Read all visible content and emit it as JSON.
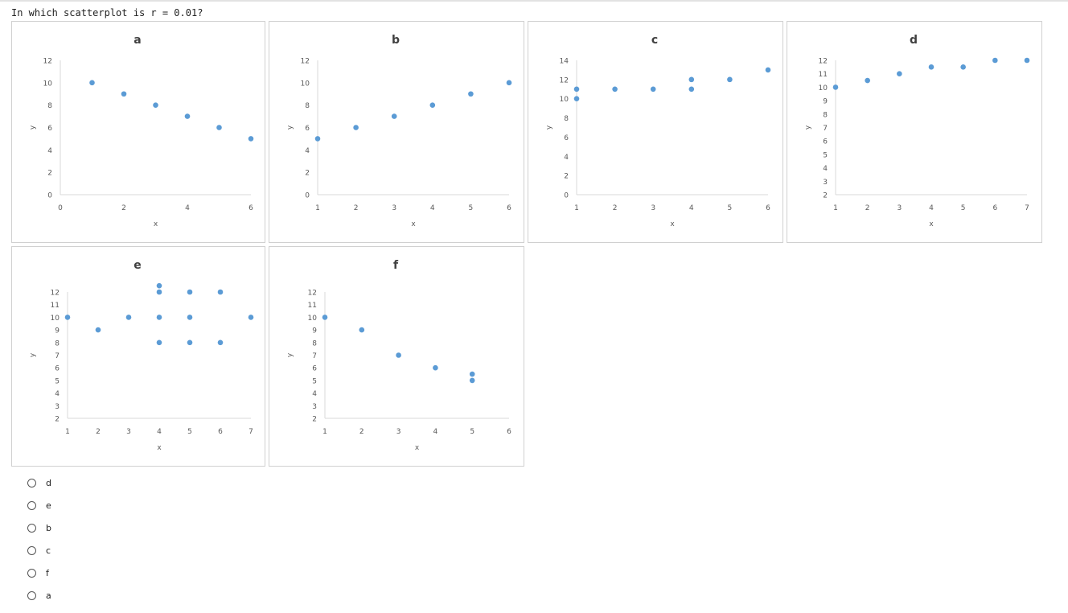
{
  "question": "In which scatterplot is r = 0.01?",
  "colors": {
    "point": "#5b9bd5",
    "axis": "#d9d9d9",
    "text": "#595959"
  },
  "chart_data": [
    {
      "type": "scatter",
      "title": "a",
      "xlabel": "x",
      "ylabel": "y",
      "xlim": [
        0,
        6
      ],
      "ylim": [
        0,
        12
      ],
      "xticks": [
        0,
        2,
        4,
        6
      ],
      "yticks": [
        0,
        2,
        4,
        6,
        8,
        10,
        12
      ],
      "points": [
        [
          1,
          10
        ],
        [
          2,
          9
        ],
        [
          3,
          8
        ],
        [
          4,
          7
        ],
        [
          5,
          6
        ],
        [
          6,
          5
        ]
      ]
    },
    {
      "type": "scatter",
      "title": "b",
      "xlabel": "x",
      "ylabel": "y",
      "xlim": [
        1,
        6
      ],
      "ylim": [
        0,
        12
      ],
      "xticks": [
        1,
        2,
        3,
        4,
        5,
        6
      ],
      "yticks": [
        0,
        2,
        4,
        6,
        8,
        10,
        12
      ],
      "points": [
        [
          1,
          5
        ],
        [
          2,
          6
        ],
        [
          3,
          7
        ],
        [
          4,
          8
        ],
        [
          5,
          9
        ],
        [
          6,
          10
        ]
      ]
    },
    {
      "type": "scatter",
      "title": "c",
      "xlabel": "x",
      "ylabel": "y",
      "xlim": [
        1,
        6
      ],
      "ylim": [
        0,
        14
      ],
      "xticks": [
        1,
        2,
        3,
        4,
        5,
        6
      ],
      "yticks": [
        0,
        2,
        4,
        6,
        8,
        10,
        12,
        14
      ],
      "points": [
        [
          1,
          11
        ],
        [
          1,
          10
        ],
        [
          2,
          11
        ],
        [
          3,
          11
        ],
        [
          4,
          12
        ],
        [
          4,
          11
        ],
        [
          5,
          12
        ],
        [
          6,
          13
        ]
      ]
    },
    {
      "type": "scatter",
      "title": "d",
      "xlabel": "x",
      "ylabel": "y",
      "xlim": [
        1,
        7
      ],
      "ylim": [
        2,
        12
      ],
      "xticks": [
        1,
        2,
        3,
        4,
        5,
        6,
        7
      ],
      "yticks": [
        2,
        3,
        4,
        5,
        6,
        7,
        8,
        9,
        10,
        11,
        12
      ],
      "points": [
        [
          1,
          10
        ],
        [
          2,
          10.5
        ],
        [
          3,
          11
        ],
        [
          4,
          11.5
        ],
        [
          5,
          11.5
        ],
        [
          6,
          12
        ],
        [
          7,
          12
        ]
      ]
    },
    {
      "type": "scatter",
      "title": "e",
      "xlabel": "x",
      "ylabel": "y",
      "xlim": [
        1,
        7
      ],
      "ylim": [
        2,
        12
      ],
      "xticks": [
        1,
        2,
        3,
        4,
        5,
        6,
        7
      ],
      "yticks": [
        2,
        3,
        4,
        5,
        6,
        7,
        8,
        9,
        10,
        11,
        12
      ],
      "points": [
        [
          1,
          10
        ],
        [
          2,
          9
        ],
        [
          3,
          10
        ],
        [
          4,
          12.5
        ],
        [
          4,
          12
        ],
        [
          4,
          10
        ],
        [
          4,
          8
        ],
        [
          5,
          12
        ],
        [
          5,
          10
        ],
        [
          5,
          8
        ],
        [
          6,
          12
        ],
        [
          6,
          8
        ],
        [
          7,
          10
        ]
      ]
    },
    {
      "type": "scatter",
      "title": "f",
      "xlabel": "x",
      "ylabel": "y",
      "xlim": [
        1,
        6
      ],
      "ylim": [
        2,
        12
      ],
      "xticks": [
        1,
        2,
        3,
        4,
        5,
        6
      ],
      "yticks": [
        2,
        3,
        4,
        5,
        6,
        7,
        8,
        9,
        10,
        11,
        12
      ],
      "points": [
        [
          1,
          10
        ],
        [
          2,
          9
        ],
        [
          3,
          7
        ],
        [
          4,
          6
        ],
        [
          5,
          5.5
        ],
        [
          5,
          5
        ]
      ]
    }
  ],
  "options": [
    {
      "label": "d"
    },
    {
      "label": "e"
    },
    {
      "label": "b"
    },
    {
      "label": "c"
    },
    {
      "label": "f"
    },
    {
      "label": "a"
    }
  ]
}
